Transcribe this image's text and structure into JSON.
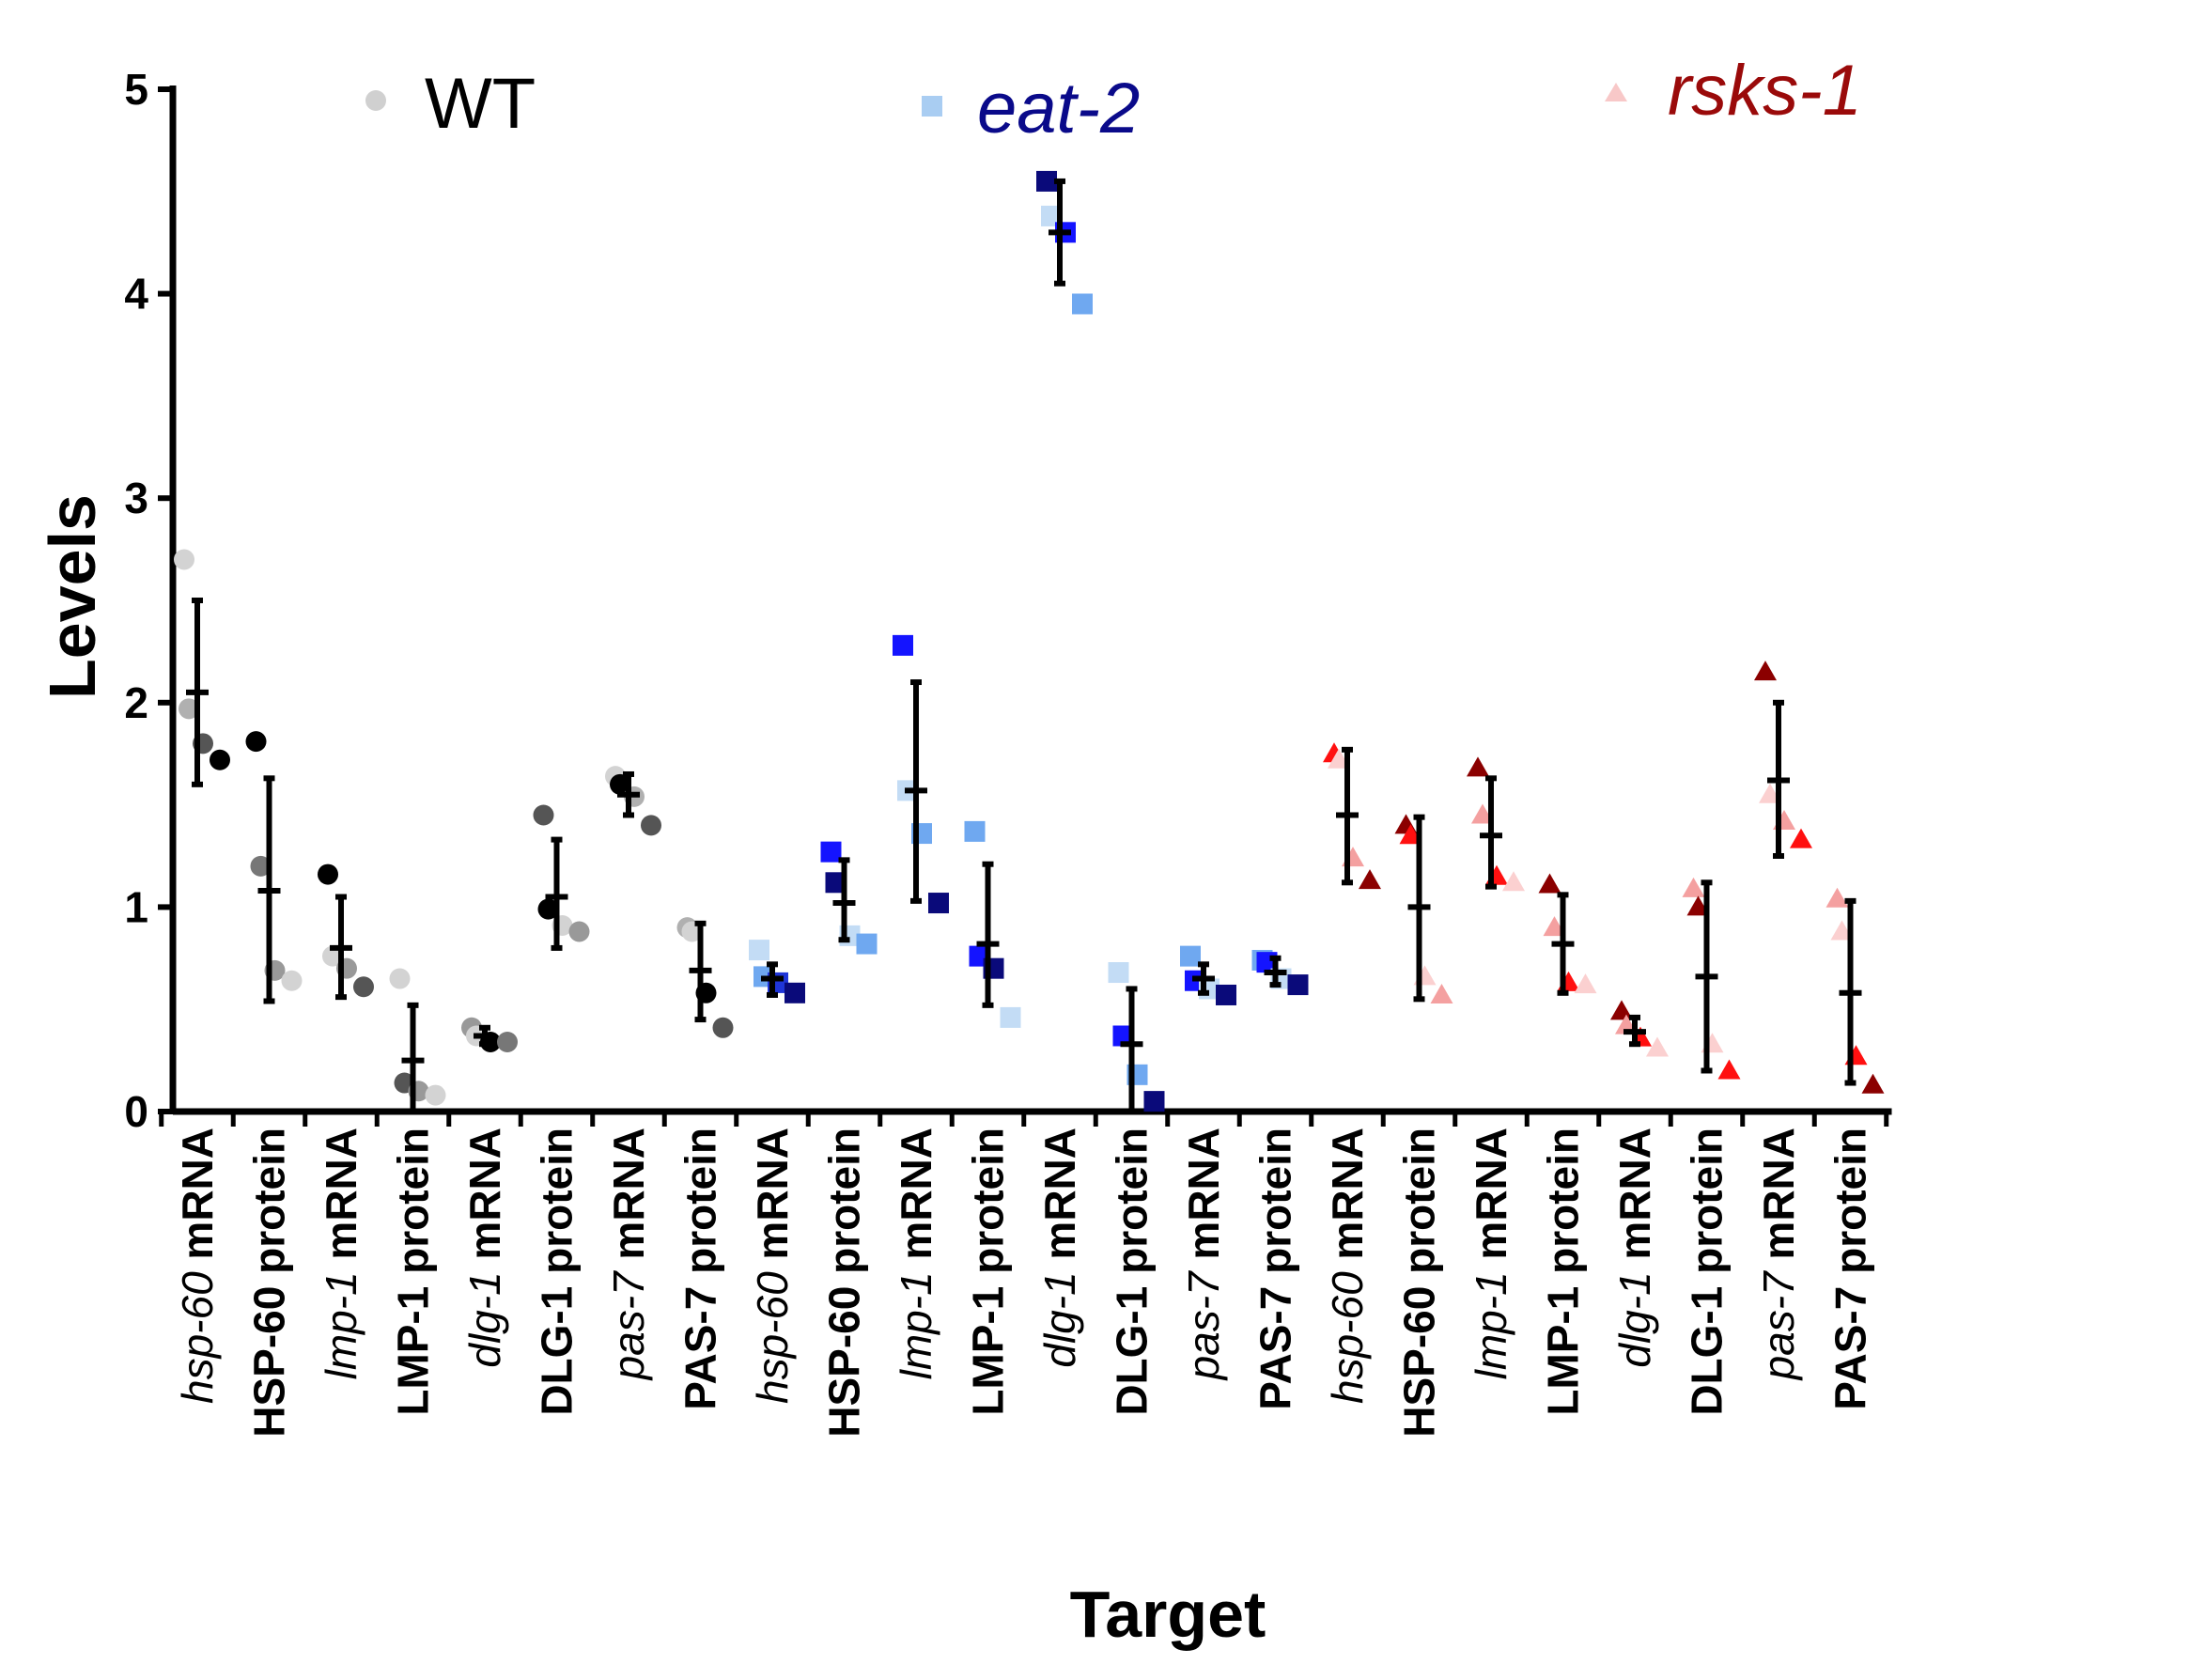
{
  "chart_data": {
    "type": "scatter",
    "title": "",
    "xlabel": "Target",
    "ylabel": "Levels",
    "ylim": [
      0,
      5
    ],
    "yticks": [
      0,
      1,
      2,
      3,
      4,
      5
    ],
    "legend": [
      {
        "name": "WT",
        "marker": "circle",
        "color": "#d0d0d0",
        "label_color": "#000000",
        "italic": false
      },
      {
        "name": "eat-2",
        "marker": "square",
        "color": "#a9cdf2",
        "label_color": "#0a0a8a",
        "italic": true
      },
      {
        "name": "rsks-1",
        "marker": "triangle",
        "color": "#f8c8c8",
        "label_color": "#9a0a0a",
        "italic": true
      }
    ],
    "categories": [
      {
        "gene": "hsp-60",
        "suffix": " mRNA",
        "group": "WT",
        "mean": 2.05,
        "error": [
          1.6,
          2.5
        ],
        "points": [
          {
            "y": 2.7,
            "c": "#d3d3d3"
          },
          {
            "y": 1.97,
            "c": "#b0b0b0"
          },
          {
            "y": 1.8,
            "c": "#555555"
          },
          {
            "y": 1.72,
            "c": "#000000"
          }
        ]
      },
      {
        "gene": "",
        "suffix": "HSP-60 protein",
        "group": "WT",
        "mean": 1.08,
        "error": [
          0.54,
          1.63
        ],
        "points": [
          {
            "y": 1.81,
            "c": "#000000"
          },
          {
            "y": 1.2,
            "c": "#777777"
          },
          {
            "y": 0.69,
            "c": "#999999"
          },
          {
            "y": 0.64,
            "c": "#d3d3d3"
          }
        ]
      },
      {
        "gene": "lmp-1",
        "suffix": " mRNA",
        "group": "WT",
        "mean": 0.8,
        "error": [
          0.56,
          1.05
        ],
        "points": [
          {
            "y": 1.16,
            "c": "#000000"
          },
          {
            "y": 0.76,
            "c": "#d3d3d3"
          },
          {
            "y": 0.7,
            "c": "#999999"
          },
          {
            "y": 0.61,
            "c": "#555555"
          }
        ]
      },
      {
        "gene": "",
        "suffix": "LMP-1 protein",
        "group": "WT",
        "mean": 0.25,
        "error": [
          0.0,
          0.52
        ],
        "points": [
          {
            "y": 0.65,
            "c": "#d3d3d3"
          },
          {
            "y": 0.14,
            "c": "#555555"
          },
          {
            "y": 0.1,
            "c": "#999999"
          },
          {
            "y": 0.08,
            "c": "#d3d3d3"
          }
        ]
      },
      {
        "gene": "dlg-1",
        "suffix": " mRNA",
        "group": "WT",
        "mean": 0.37,
        "error": [
          0.33,
          0.41
        ],
        "points": [
          {
            "y": 0.41,
            "c": "#999999"
          },
          {
            "y": 0.37,
            "c": "#d3d3d3"
          },
          {
            "y": 0.34,
            "c": "#000000"
          },
          {
            "y": 0.34,
            "c": "#777777"
          }
        ]
      },
      {
        "gene": "",
        "suffix": "DLG-1 protein",
        "group": "WT",
        "mean": 1.05,
        "error": [
          0.8,
          1.33
        ],
        "points": [
          {
            "y": 1.45,
            "c": "#555555"
          },
          {
            "y": 0.99,
            "c": "#000000"
          },
          {
            "y": 0.91,
            "c": "#d3d3d3"
          },
          {
            "y": 0.88,
            "c": "#999999"
          }
        ]
      },
      {
        "gene": "pas-7",
        "suffix": " mRNA",
        "group": "WT",
        "mean": 1.55,
        "error": [
          1.45,
          1.65
        ],
        "points": [
          {
            "y": 1.64,
            "c": "#d3d3d3"
          },
          {
            "y": 1.6,
            "c": "#000000"
          },
          {
            "y": 1.54,
            "c": "#b0b0b0"
          },
          {
            "y": 1.4,
            "c": "#555555"
          }
        ]
      },
      {
        "gene": "",
        "suffix": "PAS-7 protein",
        "group": "WT",
        "mean": 0.69,
        "error": [
          0.45,
          0.92
        ],
        "points": [
          {
            "y": 0.9,
            "c": "#b0b0b0"
          },
          {
            "y": 0.88,
            "c": "#d3d3d3"
          },
          {
            "y": 0.58,
            "c": "#000000"
          },
          {
            "y": 0.41,
            "c": "#555555"
          }
        ]
      },
      {
        "gene": "hsp-60",
        "suffix": " mRNA",
        "group": "eat-2",
        "mean": 0.65,
        "error": [
          0.57,
          0.72
        ],
        "points": [
          {
            "y": 0.79,
            "c": "#c3dcf5"
          },
          {
            "y": 0.66,
            "c": "#6fa8f0"
          },
          {
            "y": 0.63,
            "c": "#1f35d8"
          },
          {
            "y": 0.58,
            "c": "#0a0a7a"
          }
        ]
      },
      {
        "gene": "",
        "suffix": "HSP-60 protein",
        "group": "eat-2",
        "mean": 1.02,
        "error": [
          0.84,
          1.23
        ],
        "points": [
          {
            "y": 1.27,
            "c": "#1414ff"
          },
          {
            "y": 1.12,
            "c": "#0a0a7a"
          },
          {
            "y": 0.86,
            "c": "#c3dcf5"
          },
          {
            "y": 0.82,
            "c": "#6fa8f0"
          }
        ]
      },
      {
        "gene": "lmp-1",
        "suffix": " mRNA",
        "group": "eat-2",
        "mean": 1.57,
        "error": [
          1.03,
          2.1
        ],
        "points": [
          {
            "y": 2.28,
            "c": "#1414ff"
          },
          {
            "y": 1.57,
            "c": "#c3dcf5"
          },
          {
            "y": 1.36,
            "c": "#6fa8f0"
          },
          {
            "y": 1.02,
            "c": "#0a0a7a"
          }
        ]
      },
      {
        "gene": "",
        "suffix": "LMP-1 protein",
        "group": "eat-2",
        "mean": 0.82,
        "error": [
          0.52,
          1.21
        ],
        "points": [
          {
            "y": 1.37,
            "c": "#6fa8f0"
          },
          {
            "y": 0.76,
            "c": "#1414ff"
          },
          {
            "y": 0.7,
            "c": "#0a0a7a"
          },
          {
            "y": 0.46,
            "c": "#c3dcf5"
          }
        ]
      },
      {
        "gene": "dlg-1",
        "suffix": " mRNA",
        "group": "eat-2",
        "mean": 4.3,
        "error": [
          4.05,
          4.55
        ],
        "points": [
          {
            "y": 4.55,
            "c": "#0a0a7a"
          },
          {
            "y": 4.38,
            "c": "#c3dcf5"
          },
          {
            "y": 4.3,
            "c": "#1414ff"
          },
          {
            "y": 3.95,
            "c": "#6fa8f0"
          }
        ]
      },
      {
        "gene": "",
        "suffix": "DLG-1 protein",
        "group": "eat-2",
        "mean": 0.33,
        "error": [
          0.0,
          0.6
        ],
        "points": [
          {
            "y": 0.68,
            "c": "#c3dcf5"
          },
          {
            "y": 0.37,
            "c": "#1414ff"
          },
          {
            "y": 0.18,
            "c": "#6fa8f0"
          },
          {
            "y": 0.05,
            "c": "#0a0a7a"
          }
        ]
      },
      {
        "gene": "pas-7",
        "suffix": " mRNA",
        "group": "eat-2",
        "mean": 0.65,
        "error": [
          0.58,
          0.72
        ],
        "points": [
          {
            "y": 0.76,
            "c": "#6fa8f0"
          },
          {
            "y": 0.64,
            "c": "#1414ff"
          },
          {
            "y": 0.6,
            "c": "#c3dcf5"
          },
          {
            "y": 0.57,
            "c": "#0a0a7a"
          }
        ]
      },
      {
        "gene": "",
        "suffix": "PAS-7 protein",
        "group": "eat-2",
        "mean": 0.68,
        "error": [
          0.62,
          0.75
        ],
        "points": [
          {
            "y": 0.74,
            "c": "#6fa8f0"
          },
          {
            "y": 0.73,
            "c": "#1414ff"
          },
          {
            "y": 0.65,
            "c": "#c3dcf5"
          },
          {
            "y": 0.62,
            "c": "#0a0a7a"
          }
        ]
      },
      {
        "gene": "hsp-60",
        "suffix": " mRNA",
        "group": "rsks-1",
        "mean": 1.45,
        "error": [
          1.12,
          1.77
        ],
        "points": [
          {
            "y": 1.75,
            "c": "#ff1010"
          },
          {
            "y": 1.72,
            "c": "#fbd0d0"
          },
          {
            "y": 1.24,
            "c": "#f4a0a0"
          },
          {
            "y": 1.13,
            "c": "#8b0000"
          }
        ]
      },
      {
        "gene": "",
        "suffix": "HSP-60 protein",
        "group": "rsks-1",
        "mean": 1.0,
        "error": [
          0.55,
          1.44
        ],
        "points": [
          {
            "y": 1.4,
            "c": "#8b0000"
          },
          {
            "y": 1.35,
            "c": "#ff1010"
          },
          {
            "y": 0.66,
            "c": "#fbd0d0"
          },
          {
            "y": 0.57,
            "c": "#f4a0a0"
          }
        ]
      },
      {
        "gene": "lmp-1",
        "suffix": " mRNA",
        "group": "rsks-1",
        "mean": 1.35,
        "error": [
          1.1,
          1.63
        ],
        "points": [
          {
            "y": 1.68,
            "c": "#8b0000"
          },
          {
            "y": 1.45,
            "c": "#f4a0a0"
          },
          {
            "y": 1.15,
            "c": "#ff1010"
          },
          {
            "y": 1.12,
            "c": "#fbd0d0"
          }
        ]
      },
      {
        "gene": "",
        "suffix": "LMP-1 protein",
        "group": "rsks-1",
        "mean": 0.82,
        "error": [
          0.58,
          1.06
        ],
        "points": [
          {
            "y": 1.11,
            "c": "#8b0000"
          },
          {
            "y": 0.9,
            "c": "#f4a0a0"
          },
          {
            "y": 0.63,
            "c": "#ff1010"
          },
          {
            "y": 0.62,
            "c": "#fbd0d0"
          }
        ]
      },
      {
        "gene": "dlg-1",
        "suffix": " mRNA",
        "group": "rsks-1",
        "mean": 0.39,
        "error": [
          0.33,
          0.46
        ],
        "points": [
          {
            "y": 0.49,
            "c": "#8b0000"
          },
          {
            "y": 0.42,
            "c": "#f4a0a0"
          },
          {
            "y": 0.36,
            "c": "#ff1010"
          },
          {
            "y": 0.31,
            "c": "#fbd0d0"
          }
        ]
      },
      {
        "gene": "",
        "suffix": "DLG-1 protein",
        "group": "rsks-1",
        "mean": 0.66,
        "error": [
          0.2,
          1.12
        ],
        "points": [
          {
            "y": 1.09,
            "c": "#f4a0a0"
          },
          {
            "y": 1.0,
            "c": "#8b0000"
          },
          {
            "y": 0.33,
            "c": "#fbd0d0"
          },
          {
            "y": 0.2,
            "c": "#ff1010"
          }
        ]
      },
      {
        "gene": "pas-7",
        "suffix": " mRNA",
        "group": "rsks-1",
        "mean": 1.62,
        "error": [
          1.25,
          2.0
        ],
        "points": [
          {
            "y": 2.15,
            "c": "#8b0000"
          },
          {
            "y": 1.55,
            "c": "#fbd0d0"
          },
          {
            "y": 1.42,
            "c": "#f4a0a0"
          },
          {
            "y": 1.33,
            "c": "#ff1010"
          }
        ]
      },
      {
        "gene": "",
        "suffix": "PAS-7 protein",
        "group": "rsks-1",
        "mean": 0.58,
        "error": [
          0.14,
          1.03
        ],
        "points": [
          {
            "y": 1.04,
            "c": "#f4a0a0"
          },
          {
            "y": 0.88,
            "c": "#fbd0d0"
          },
          {
            "y": 0.27,
            "c": "#ff1010"
          },
          {
            "y": 0.13,
            "c": "#8b0000"
          }
        ]
      }
    ]
  }
}
